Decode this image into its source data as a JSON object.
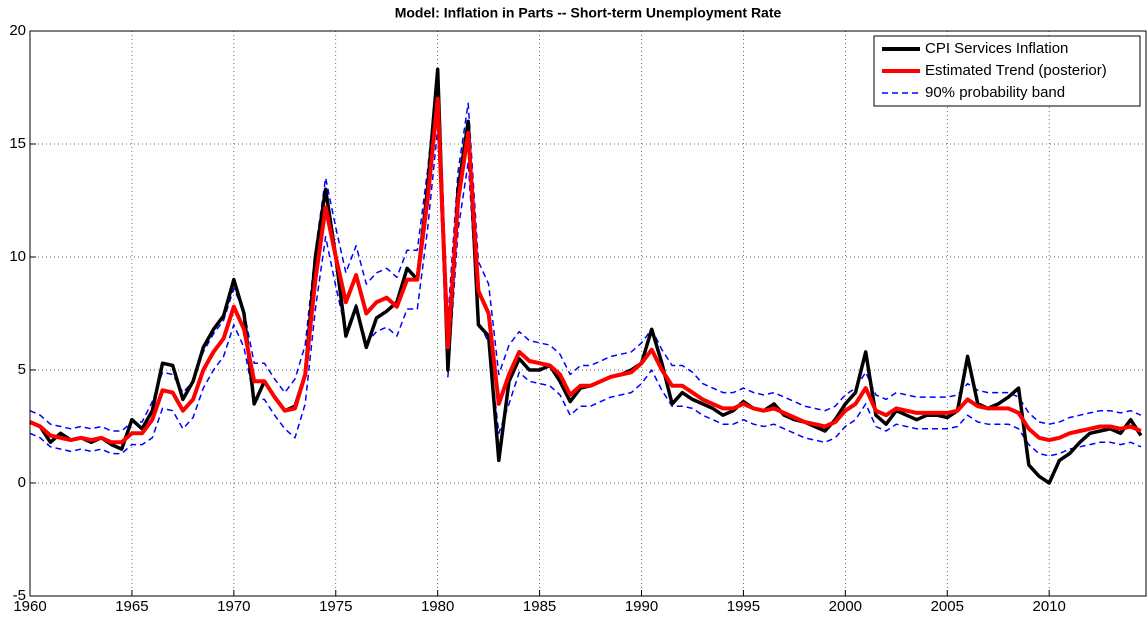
{
  "chart_data": {
    "type": "line",
    "title": "Model: Inflation in Parts -- Short-term  Unemployment Rate",
    "x": [
      1960,
      1960.5,
      1961,
      1961.5,
      1962,
      1962.5,
      1963,
      1963.5,
      1964,
      1964.5,
      1965,
      1965.5,
      1966,
      1966.5,
      1967,
      1967.5,
      1968,
      1968.5,
      1969,
      1969.5,
      1970,
      1970.5,
      1971,
      1971.5,
      1972,
      1972.5,
      1973,
      1973.5,
      1974,
      1974.5,
      1975,
      1975.5,
      1976,
      1976.5,
      1977,
      1977.5,
      1978,
      1978.5,
      1979,
      1979.5,
      1980,
      1980.5,
      1981,
      1981.5,
      1982,
      1982.5,
      1983,
      1983.5,
      1984,
      1984.5,
      1985,
      1985.5,
      1986,
      1986.5,
      1987,
      1987.5,
      1988,
      1988.5,
      1989,
      1989.5,
      1990,
      1990.5,
      1991,
      1991.5,
      1992,
      1992.5,
      1993,
      1993.5,
      1994,
      1994.5,
      1995,
      1995.5,
      1996,
      1996.5,
      1997,
      1997.5,
      1998,
      1998.5,
      1999,
      1999.5,
      2000,
      2000.5,
      2001,
      2001.5,
      2002,
      2002.5,
      2003,
      2003.5,
      2004,
      2004.5,
      2005,
      2005.5,
      2006,
      2006.5,
      2007,
      2007.5,
      2008,
      2008.5,
      2009,
      2009.5,
      2010,
      2010.5,
      2011,
      2011.5,
      2012,
      2012.5,
      2013,
      2013.5,
      2014,
      2014.5
    ],
    "series": [
      {
        "name": "CPI Services Inflation",
        "color": "#000000",
        "style": "solid",
        "values": [
          2.7,
          2.5,
          1.8,
          2.2,
          1.9,
          2.0,
          1.8,
          2.0,
          1.7,
          1.5,
          2.8,
          2.4,
          3.2,
          5.3,
          5.2,
          3.7,
          4.5,
          6.0,
          6.8,
          7.4,
          9.0,
          7.5,
          3.5,
          4.5,
          3.8,
          3.2,
          3.4,
          4.8,
          10.0,
          13.0,
          10.0,
          6.5,
          7.8,
          6.0,
          7.3,
          7.6,
          8.0,
          9.5,
          9.0,
          13.0,
          18.3,
          5.0,
          13.0,
          16.0,
          7.0,
          6.5,
          1.0,
          4.5,
          5.5,
          5.0,
          5.0,
          5.2,
          4.5,
          3.6,
          4.2,
          4.3,
          4.5,
          4.7,
          4.8,
          5.0,
          5.3,
          6.8,
          5.3,
          3.5,
          4.0,
          3.7,
          3.5,
          3.3,
          3.0,
          3.2,
          3.6,
          3.3,
          3.2,
          3.5,
          3.0,
          2.8,
          2.7,
          2.5,
          2.3,
          2.8,
          3.5,
          4.0,
          5.8,
          3.0,
          2.6,
          3.2,
          3.0,
          2.8,
          3.0,
          3.0,
          2.9,
          3.2,
          5.6,
          3.5,
          3.3,
          3.5,
          3.8,
          4.2,
          0.8,
          0.3,
          0.0,
          1.0,
          1.3,
          1.8,
          2.2,
          2.3,
          2.4,
          2.2,
          2.8,
          2.1
        ]
      },
      {
        "name": "Estimated Trend (posterior)",
        "color": "#ff0000",
        "style": "solid",
        "values": [
          2.7,
          2.5,
          2.1,
          2.0,
          1.9,
          2.0,
          1.9,
          2.0,
          1.8,
          1.8,
          2.2,
          2.2,
          2.8,
          4.1,
          4.0,
          3.2,
          3.7,
          5.0,
          5.8,
          6.4,
          7.8,
          6.8,
          4.5,
          4.5,
          3.8,
          3.2,
          3.3,
          4.8,
          9.0,
          12.2,
          10.0,
          8.0,
          9.2,
          7.5,
          8.0,
          8.2,
          7.8,
          9.0,
          9.0,
          12.5,
          17.0,
          6.0,
          12.5,
          15.5,
          8.5,
          7.5,
          3.5,
          4.8,
          5.8,
          5.4,
          5.3,
          5.2,
          4.8,
          3.9,
          4.3,
          4.3,
          4.5,
          4.7,
          4.8,
          4.9,
          5.3,
          5.9,
          5.0,
          4.3,
          4.3,
          4.0,
          3.7,
          3.5,
          3.3,
          3.3,
          3.5,
          3.3,
          3.2,
          3.3,
          3.1,
          2.9,
          2.7,
          2.6,
          2.5,
          2.7,
          3.2,
          3.5,
          4.2,
          3.2,
          3.0,
          3.3,
          3.2,
          3.1,
          3.1,
          3.1,
          3.1,
          3.2,
          3.7,
          3.4,
          3.3,
          3.3,
          3.3,
          3.1,
          2.4,
          2.0,
          1.9,
          2.0,
          2.2,
          2.3,
          2.4,
          2.5,
          2.5,
          2.4,
          2.5,
          2.3
        ]
      },
      {
        "name": "90% probability band",
        "color": "#0000ff",
        "style": "dashed",
        "upper": [
          3.2,
          3.0,
          2.6,
          2.5,
          2.4,
          2.5,
          2.4,
          2.5,
          2.3,
          2.3,
          2.7,
          2.7,
          3.6,
          4.9,
          4.8,
          4.0,
          4.5,
          5.8,
          6.6,
          7.2,
          8.6,
          7.6,
          5.3,
          5.3,
          4.6,
          4.0,
          4.6,
          6.1,
          10.3,
          13.5,
          11.3,
          9.3,
          10.5,
          8.8,
          9.3,
          9.5,
          9.1,
          10.3,
          10.3,
          13.8,
          18.3,
          7.3,
          13.8,
          16.8,
          9.8,
          8.8,
          4.8,
          6.1,
          6.7,
          6.3,
          6.2,
          6.1,
          5.7,
          4.8,
          5.2,
          5.2,
          5.4,
          5.6,
          5.7,
          5.8,
          6.2,
          6.8,
          5.9,
          5.2,
          5.2,
          4.9,
          4.4,
          4.2,
          4.0,
          4.0,
          4.2,
          4.0,
          3.9,
          4.0,
          3.8,
          3.6,
          3.4,
          3.3,
          3.2,
          3.4,
          3.9,
          4.2,
          4.9,
          3.9,
          3.7,
          4.0,
          3.9,
          3.8,
          3.8,
          3.8,
          3.8,
          3.9,
          4.4,
          4.1,
          4.0,
          4.0,
          4.0,
          3.8,
          3.1,
          2.7,
          2.6,
          2.7,
          2.9,
          3.0,
          3.1,
          3.2,
          3.2,
          3.1,
          3.2,
          3.0
        ],
        "lower": [
          2.2,
          2.0,
          1.6,
          1.5,
          1.4,
          1.5,
          1.4,
          1.5,
          1.3,
          1.3,
          1.7,
          1.7,
          2.0,
          3.3,
          3.2,
          2.4,
          2.9,
          4.2,
          5.0,
          5.6,
          7.0,
          6.0,
          3.7,
          3.7,
          3.0,
          2.4,
          2.0,
          3.5,
          7.7,
          10.9,
          8.7,
          6.7,
          7.9,
          6.2,
          6.7,
          6.9,
          6.5,
          7.7,
          7.7,
          11.2,
          15.7,
          4.7,
          11.2,
          14.2,
          7.2,
          6.2,
          2.2,
          3.5,
          4.9,
          4.5,
          4.4,
          4.3,
          3.9,
          3.0,
          3.4,
          3.4,
          3.6,
          3.8,
          3.9,
          4.0,
          4.4,
          5.0,
          4.1,
          3.4,
          3.4,
          3.3,
          3.0,
          2.8,
          2.6,
          2.6,
          2.8,
          2.6,
          2.5,
          2.6,
          2.4,
          2.2,
          2.0,
          1.9,
          1.8,
          2.0,
          2.5,
          2.8,
          3.5,
          2.5,
          2.3,
          2.6,
          2.5,
          2.4,
          2.4,
          2.4,
          2.4,
          2.5,
          3.0,
          2.7,
          2.6,
          2.6,
          2.6,
          2.4,
          1.7,
          1.3,
          1.2,
          1.3,
          1.5,
          1.6,
          1.7,
          1.8,
          1.8,
          1.7,
          1.8,
          1.6
        ]
      }
    ],
    "xlim": [
      1960,
      2014.75
    ],
    "xticks": [
      1960,
      1965,
      1970,
      1975,
      1980,
      1985,
      1990,
      1995,
      2000,
      2005,
      2010
    ],
    "ylim": [
      -5,
      20
    ],
    "yticks": [
      -5,
      0,
      5,
      10,
      15,
      20
    ],
    "grid": true,
    "legend": "top-right"
  }
}
